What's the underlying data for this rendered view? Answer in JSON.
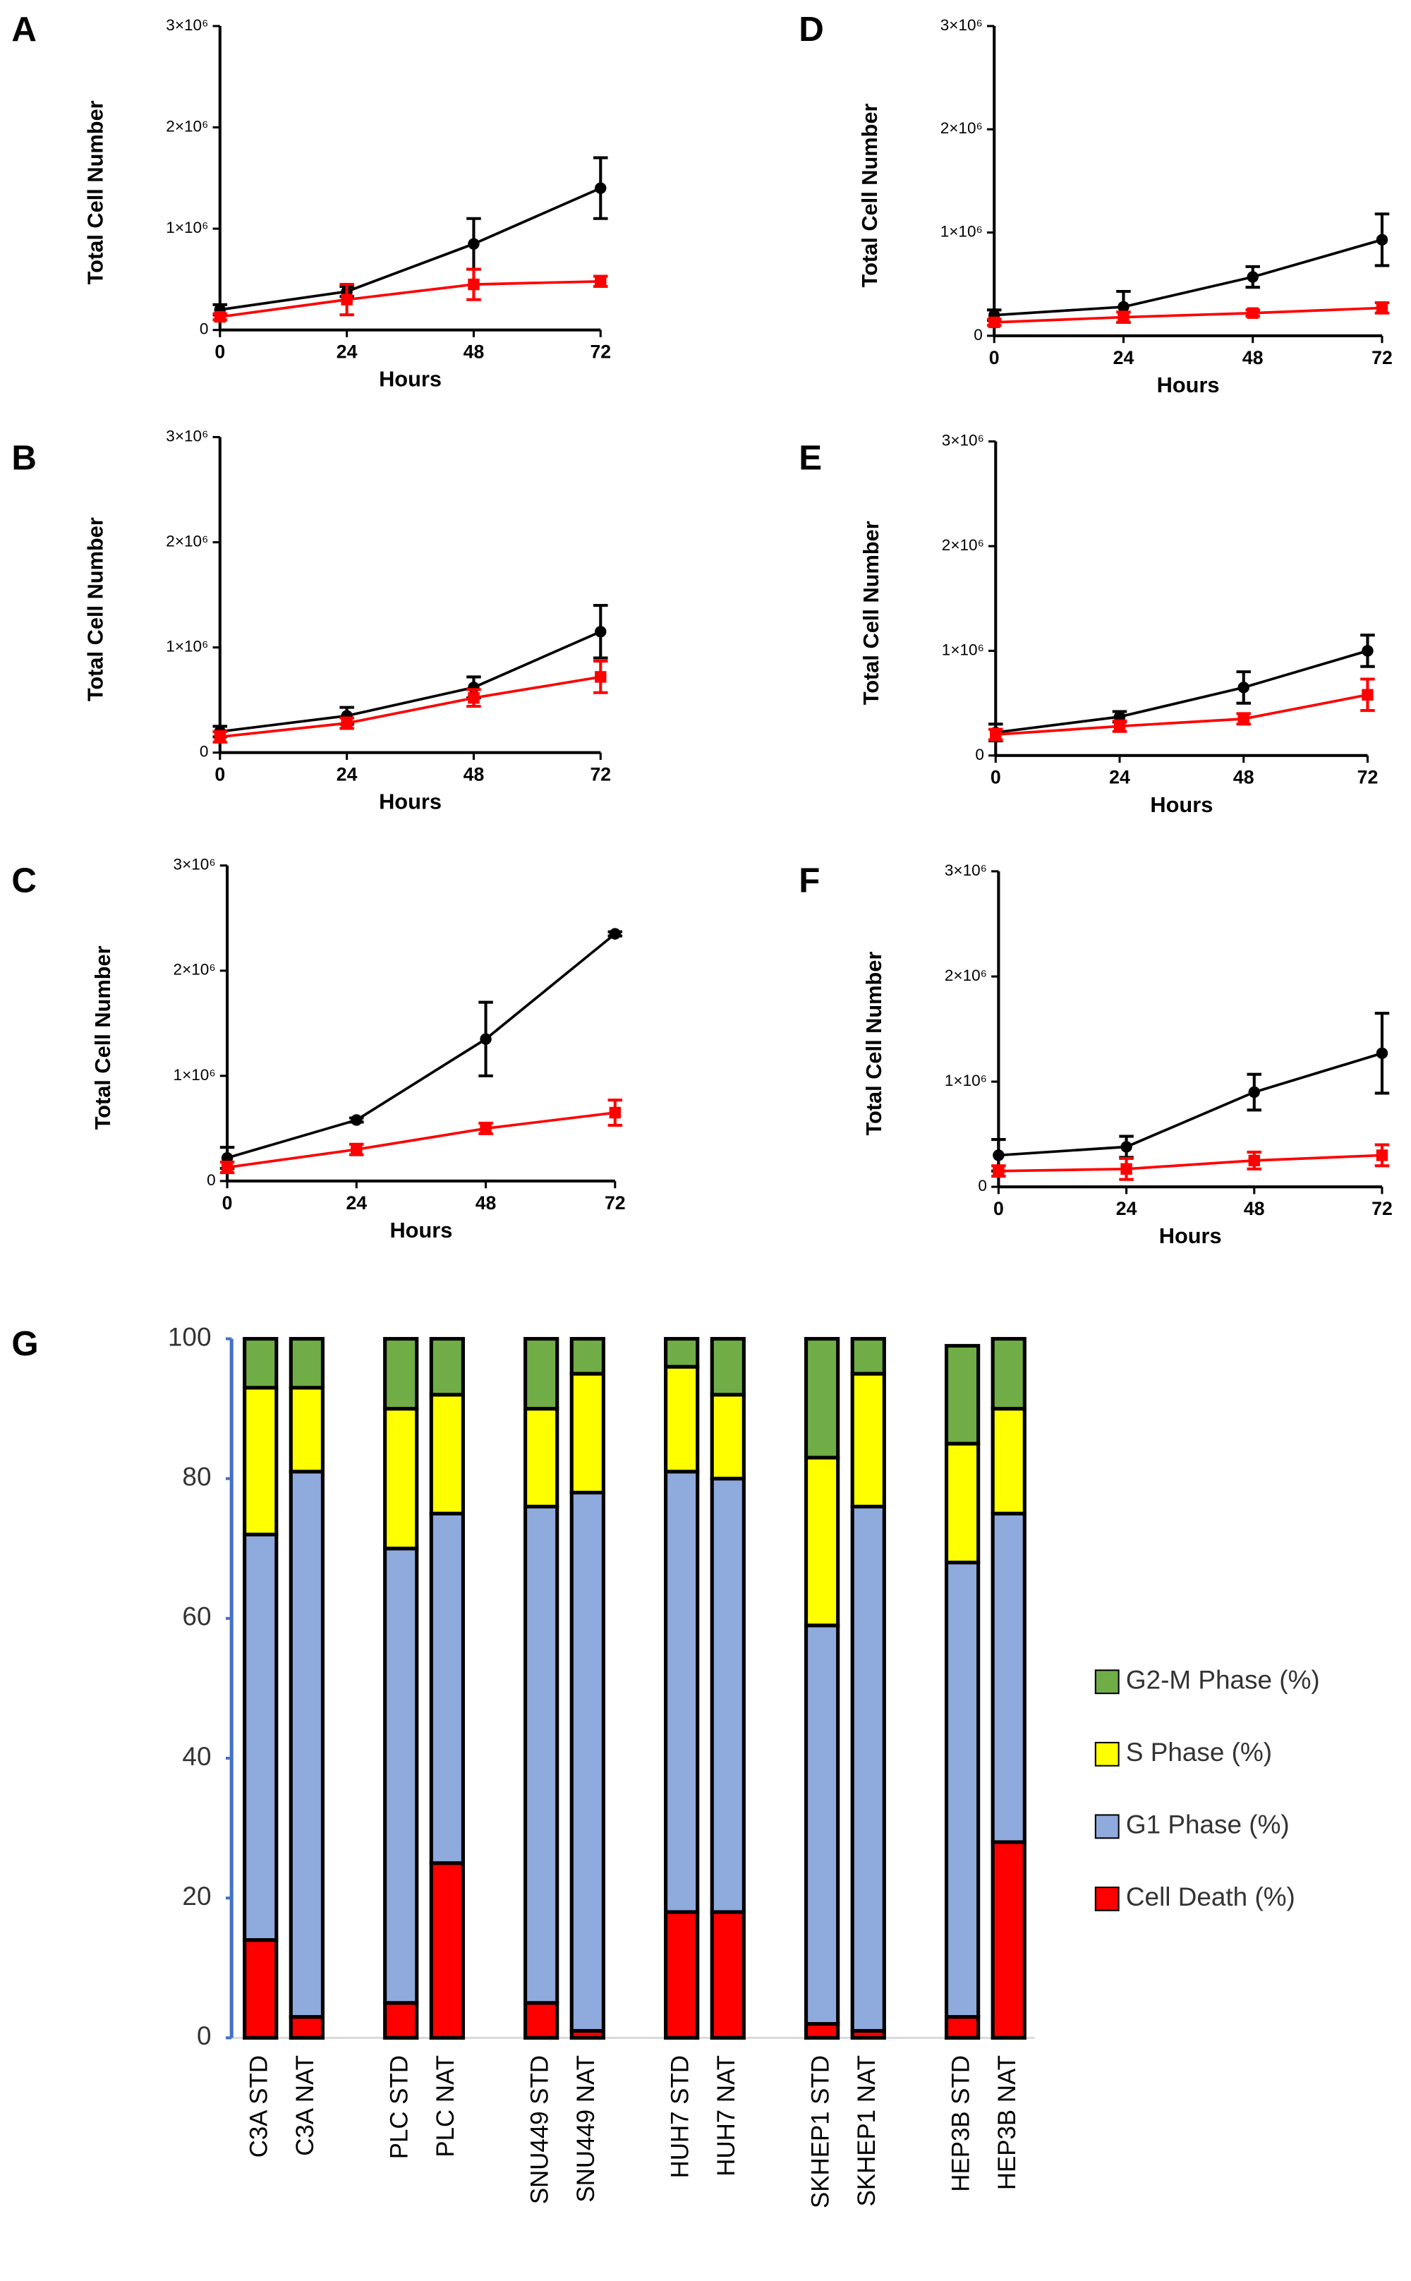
{
  "chart_data": [
    {
      "type": "line",
      "label": "A",
      "ylabel": "Total Cell Number",
      "xlabel": "Hours",
      "x": [
        0,
        24,
        48,
        72
      ],
      "xlim": [
        0,
        72
      ],
      "xticks": [
        0,
        24,
        48,
        72
      ],
      "ylim": [
        0,
        3000000
      ],
      "yticks": [
        0,
        {
          "value": 1000000,
          "label": "1×10⁶"
        },
        {
          "value": 2000000,
          "label": "2×10⁶"
        },
        {
          "value": 3000000,
          "label": "3×10⁶"
        }
      ],
      "series": [
        {
          "color": "#000000",
          "values": [
            200000,
            380000,
            850000,
            1400000
          ],
          "errors": [
            50000,
            50000,
            250000,
            300000
          ]
        },
        {
          "color": "#ff0000",
          "values": [
            130000,
            300000,
            450000,
            480000
          ],
          "errors": [
            30000,
            150000,
            150000,
            50000
          ]
        }
      ]
    },
    {
      "type": "line",
      "label": "D",
      "ylabel": "Total Cell Number",
      "xlabel": "Hours",
      "x": [
        0,
        24,
        48,
        72
      ],
      "xlim": [
        0,
        72
      ],
      "xticks": [
        0,
        24,
        48,
        72
      ],
      "ylim": [
        0,
        3000000
      ],
      "yticks": [
        0,
        {
          "value": 1000000,
          "label": "1×10⁶"
        },
        {
          "value": 2000000,
          "label": "2×10⁶"
        },
        {
          "value": 3000000,
          "label": "3×10⁶"
        }
      ],
      "series": [
        {
          "color": "#000000",
          "values": [
            200000,
            280000,
            570000,
            930000
          ],
          "errors": [
            50000,
            150000,
            100000,
            250000
          ]
        },
        {
          "color": "#ff0000",
          "values": [
            130000,
            180000,
            220000,
            270000
          ],
          "errors": [
            30000,
            50000,
            30000,
            50000
          ]
        }
      ]
    },
    {
      "type": "line",
      "label": "B",
      "ylabel": "Total Cell Number",
      "xlabel": "Hours",
      "x": [
        0,
        24,
        48,
        72
      ],
      "xlim": [
        0,
        72
      ],
      "xticks": [
        0,
        24,
        48,
        72
      ],
      "ylim": [
        0,
        3000000
      ],
      "yticks": [
        0,
        {
          "value": 1000000,
          "label": "1×10⁶"
        },
        {
          "value": 2000000,
          "label": "2×10⁶"
        },
        {
          "value": 3000000,
          "label": "3×10⁶"
        }
      ],
      "series": [
        {
          "color": "#000000",
          "values": [
            200000,
            350000,
            620000,
            1150000
          ],
          "errors": [
            50000,
            80000,
            100000,
            250000
          ]
        },
        {
          "color": "#ff0000",
          "values": [
            150000,
            280000,
            520000,
            720000
          ],
          "errors": [
            50000,
            50000,
            80000,
            150000
          ]
        }
      ]
    },
    {
      "type": "line",
      "label": "E",
      "ylabel": "Total Cell Number",
      "xlabel": "Hours",
      "x": [
        0,
        24,
        48,
        72
      ],
      "xlim": [
        0,
        72
      ],
      "xticks": [
        0,
        24,
        48,
        72
      ],
      "ylim": [
        0,
        3000000
      ],
      "yticks": [
        0,
        {
          "value": 1000000,
          "label": "1×10⁶"
        },
        {
          "value": 2000000,
          "label": "2×10⁶"
        },
        {
          "value": 3000000,
          "label": "3×10⁶"
        }
      ],
      "series": [
        {
          "color": "#000000",
          "values": [
            220000,
            370000,
            650000,
            1000000
          ],
          "errors": [
            80000,
            50000,
            150000,
            150000
          ]
        },
        {
          "color": "#ff0000",
          "values": [
            200000,
            280000,
            350000,
            580000
          ],
          "errors": [
            50000,
            50000,
            50000,
            150000
          ]
        }
      ]
    },
    {
      "type": "line",
      "label": "C",
      "ylabel": "Total Cell Number",
      "xlabel": "Hours",
      "x": [
        0,
        24,
        48,
        72
      ],
      "xlim": [
        0,
        72
      ],
      "xticks": [
        0,
        24,
        48,
        72
      ],
      "ylim": [
        0,
        3000000
      ],
      "yticks": [
        0,
        {
          "value": 1000000,
          "label": "1×10⁶"
        },
        {
          "value": 2000000,
          "label": "2×10⁶"
        },
        {
          "value": 3000000,
          "label": "3×10⁶"
        }
      ],
      "series": [
        {
          "color": "#000000",
          "values": [
            220000,
            580000,
            1350000,
            2350000
          ],
          "errors": [
            100000,
            20000,
            350000,
            20000
          ]
        },
        {
          "color": "#ff0000",
          "values": [
            130000,
            300000,
            500000,
            650000
          ],
          "errors": [
            50000,
            50000,
            50000,
            120000
          ]
        }
      ]
    },
    {
      "type": "line",
      "label": "F",
      "ylabel": "Total Cell Number",
      "xlabel": "Hours",
      "x": [
        0,
        24,
        48,
        72
      ],
      "xlim": [
        0,
        72
      ],
      "xticks": [
        0,
        24,
        48,
        72
      ],
      "ylim": [
        0,
        3000000
      ],
      "yticks": [
        0,
        {
          "value": 1000000,
          "label": "1×10⁶"
        },
        {
          "value": 2000000,
          "label": "2×10⁶"
        },
        {
          "value": 3000000,
          "label": "3×10⁶"
        }
      ],
      "series": [
        {
          "color": "#000000",
          "values": [
            300000,
            380000,
            900000,
            1270000
          ],
          "errors": [
            150000,
            100000,
            170000,
            380000
          ]
        },
        {
          "color": "#ff0000",
          "values": [
            150000,
            170000,
            250000,
            300000
          ],
          "errors": [
            50000,
            100000,
            80000,
            100000
          ]
        }
      ]
    },
    {
      "type": "stacked_bar",
      "label": "G",
      "categories": [
        "C3A STD",
        "C3A NAT",
        "PLC STD",
        "PLC NAT",
        "SNU449 STD",
        "SNU449 NAT",
        "HUH7 STD",
        "HUH7 NAT",
        "SKHEP1 STD",
        "SKHEP1 NAT",
        "HEP3B STD",
        "HEP3B NAT"
      ],
      "ylim": [
        0,
        100
      ],
      "yticks": [
        0,
        20,
        40,
        60,
        80,
        100
      ],
      "series": [
        {
          "name": "Cell Death (%)",
          "color": "#ff0000",
          "values": [
            14,
            3,
            5,
            25,
            5,
            1,
            18,
            18,
            2,
            1,
            3,
            28
          ]
        },
        {
          "name": "G1 Phase (%)",
          "color": "#8faadc",
          "values": [
            58,
            78,
            65,
            50,
            71,
            77,
            63,
            62,
            57,
            75,
            65,
            47
          ]
        },
        {
          "name": "S Phase (%)",
          "color": "#ffff00",
          "values": [
            21,
            12,
            20,
            17,
            14,
            17,
            15,
            12,
            24,
            19,
            17,
            15
          ]
        },
        {
          "name": "G2-M Phase (%)",
          "color": "#70ad47",
          "values": [
            7,
            7,
            10,
            8,
            10,
            5,
            4,
            8,
            17,
            5,
            14,
            10
          ]
        }
      ]
    }
  ]
}
